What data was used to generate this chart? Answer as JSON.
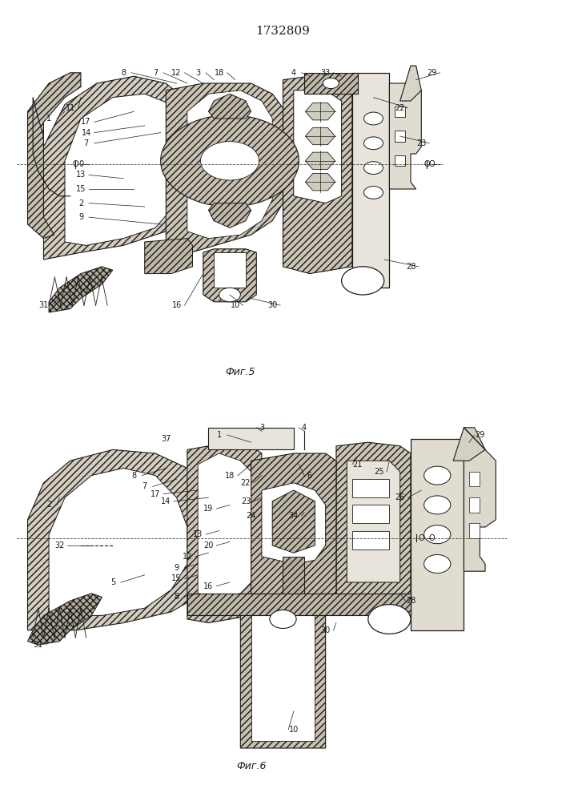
{
  "title": "1732809",
  "fig5_caption": "Фиг.5",
  "fig6_caption": "Фиг.6",
  "line_color": "#1a1a1a",
  "title_fontsize": 11,
  "caption_fontsize": 9,
  "label_fontsize": 7.5,
  "hatch_gray": "#d8d0c0",
  "white": "#ffffff",
  "light_gray": "#e8e4dc"
}
